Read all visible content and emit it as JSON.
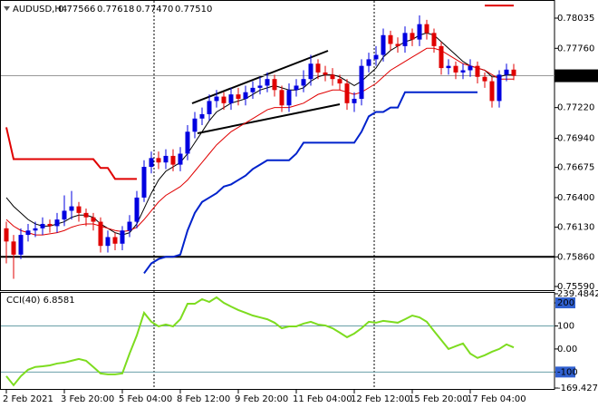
{
  "header": {
    "symbol": "AUDUSD,H4",
    "ohlc": [
      "0.77566",
      "0.77618",
      "0.77470",
      "0.77510"
    ]
  },
  "chart_data": [
    {
      "type": "candlestick",
      "categories": [
        "2 Feb 2021",
        null,
        null,
        null,
        null,
        null,
        null,
        null,
        "3 Feb 20:00",
        null,
        null,
        null,
        null,
        null,
        null,
        null,
        "5 Feb 04:00",
        null,
        null,
        null,
        null,
        null,
        null,
        null,
        "8 Feb 12:00",
        null,
        null,
        null,
        null,
        null,
        null,
        null,
        "9 Feb 20:00",
        null,
        null,
        null,
        null,
        null,
        null,
        null,
        "11 Feb 04:00",
        null,
        null,
        null,
        null,
        null,
        null,
        null,
        "12 Feb 12:00",
        null,
        null,
        null,
        null,
        null,
        null,
        null,
        "15 Feb 20:00",
        null,
        null,
        null,
        null,
        null,
        null,
        null,
        "17 Feb 04:00",
        null,
        null,
        null,
        null,
        null,
        null
      ],
      "open": [
        0.7612,
        0.76,
        0.7588,
        0.7606,
        0.761,
        0.7612,
        0.7616,
        0.7614,
        0.762,
        0.7628,
        0.7632,
        0.7626,
        0.7622,
        0.7618,
        0.7596,
        0.7604,
        0.7598,
        0.761,
        0.7618,
        0.764,
        0.7668,
        0.7676,
        0.7672,
        0.7678,
        0.767,
        0.768,
        0.77,
        0.7712,
        0.7716,
        0.7728,
        0.7732,
        0.7726,
        0.7734,
        0.773,
        0.7736,
        0.774,
        0.7742,
        0.7748,
        0.7738,
        0.7724,
        0.7738,
        0.7742,
        0.7748,
        0.7762,
        0.7754,
        0.7752,
        0.7748,
        0.7744,
        0.7726,
        0.773,
        0.776,
        0.7766,
        0.777,
        0.7788,
        0.778,
        0.7778,
        0.779,
        0.7784,
        0.7798,
        0.779,
        0.7778,
        0.7758,
        0.776,
        0.7754,
        0.7756,
        0.776,
        0.775,
        0.7746,
        0.7728,
        0.7752,
        0.77566
      ],
      "high": [
        0.7618,
        0.7606,
        0.7612,
        0.7616,
        0.7618,
        0.7622,
        0.762,
        0.7626,
        0.7642,
        0.7646,
        0.7636,
        0.763,
        0.7626,
        0.7622,
        0.761,
        0.7608,
        0.7614,
        0.7624,
        0.7646,
        0.7674,
        0.7682,
        0.7682,
        0.7684,
        0.7684,
        0.7686,
        0.7706,
        0.7718,
        0.7722,
        0.7734,
        0.7738,
        0.7736,
        0.774,
        0.774,
        0.7742,
        0.7746,
        0.775,
        0.7754,
        0.7752,
        0.7742,
        0.7744,
        0.7748,
        0.7756,
        0.777,
        0.7766,
        0.776,
        0.7758,
        0.7752,
        0.7748,
        0.7736,
        0.7766,
        0.7772,
        0.7778,
        0.7794,
        0.7792,
        0.7786,
        0.7796,
        0.7794,
        0.7806,
        0.7802,
        0.7794,
        0.7782,
        0.7766,
        0.7764,
        0.7762,
        0.7766,
        0.7764,
        0.7754,
        0.775,
        0.7756,
        0.7762,
        0.77618
      ],
      "low": [
        0.758,
        0.7566,
        0.7584,
        0.76,
        0.7604,
        0.7606,
        0.7608,
        0.7608,
        0.7614,
        0.762,
        0.7618,
        0.7614,
        0.761,
        0.759,
        0.759,
        0.7592,
        0.7592,
        0.7604,
        0.7612,
        0.7636,
        0.7662,
        0.7666,
        0.7666,
        0.7664,
        0.7664,
        0.7674,
        0.7694,
        0.7706,
        0.771,
        0.7722,
        0.772,
        0.772,
        0.7724,
        0.7724,
        0.773,
        0.7734,
        0.7736,
        0.7732,
        0.7718,
        0.7718,
        0.7732,
        0.7736,
        0.7742,
        0.7748,
        0.7746,
        0.7742,
        0.7738,
        0.772,
        0.7718,
        0.7724,
        0.7754,
        0.776,
        0.7764,
        0.7774,
        0.7772,
        0.7772,
        0.7778,
        0.7778,
        0.7784,
        0.7772,
        0.7752,
        0.7752,
        0.7748,
        0.7748,
        0.775,
        0.7744,
        0.774,
        0.7722,
        0.7722,
        0.7746,
        0.7747
      ],
      "close": [
        0.76,
        0.7588,
        0.7606,
        0.761,
        0.7612,
        0.7616,
        0.7614,
        0.762,
        0.7628,
        0.7632,
        0.7626,
        0.7622,
        0.7618,
        0.7596,
        0.7604,
        0.7598,
        0.761,
        0.7618,
        0.764,
        0.7668,
        0.7676,
        0.7672,
        0.7678,
        0.767,
        0.768,
        0.77,
        0.7712,
        0.7716,
        0.7728,
        0.7732,
        0.7726,
        0.7734,
        0.773,
        0.7736,
        0.774,
        0.7742,
        0.7748,
        0.7738,
        0.7724,
        0.7738,
        0.7742,
        0.7748,
        0.7762,
        0.7754,
        0.7752,
        0.7748,
        0.7744,
        0.7726,
        0.773,
        0.776,
        0.7766,
        0.777,
        0.7788,
        0.778,
        0.7778,
        0.779,
        0.7784,
        0.7798,
        0.779,
        0.7778,
        0.7758,
        0.776,
        0.7754,
        0.7756,
        0.776,
        0.775,
        0.7746,
        0.7728,
        0.7752,
        0.77566,
        0.7751
      ],
      "up_color": "#0000e0",
      "down_color": "#e00000",
      "ylim": [
        0.75565,
        0.78192
      ],
      "yticks": [
        0.78035,
        {
          "value": 0.7776,
          "label": "0.77760"
        },
        {
          "value": 0.7722,
          "label": "0.77220"
        },
        {
          "value": 0.7694,
          "label": "0.76940"
        },
        0.76675,
        {
          "value": 0.764,
          "label": "0.76400"
        },
        {
          "value": 0.7613,
          "label": "0.76130"
        },
        {
          "value": 0.7586,
          "label": "0.75860"
        },
        {
          "value": 0.7559,
          "label": "0.75590"
        }
      ],
      "current_price": {
        "value": 0.7751,
        "label": "0.77510"
      },
      "levels": [
        0.7586
      ],
      "lines": [
        {
          "color": "#000000",
          "width": 1,
          "values": [
            0.764,
            0.7632,
            0.7626,
            0.762,
            0.7616,
            0.7614,
            0.7614,
            0.7616,
            0.7618,
            0.7622,
            0.7624,
            0.7624,
            0.7622,
            0.7616,
            0.7612,
            0.7608,
            0.7606,
            0.7608,
            0.7616,
            0.763,
            0.7644,
            0.7656,
            0.7664,
            0.7668,
            0.7672,
            0.768,
            0.769,
            0.77,
            0.771,
            0.7718,
            0.7722,
            0.7726,
            0.7728,
            0.773,
            0.7734,
            0.7738,
            0.774,
            0.7742,
            0.774,
            0.7738,
            0.7738,
            0.774,
            0.7746,
            0.775,
            0.7752,
            0.7752,
            0.775,
            0.7746,
            0.7742,
            0.7746,
            0.7752,
            0.7758,
            0.7768,
            0.7774,
            0.7778,
            0.7782,
            0.7784,
            0.7788,
            0.779,
            0.7788,
            0.7782,
            0.7776,
            0.777,
            0.7764,
            0.776,
            0.7758,
            0.7756,
            0.775,
            0.775,
            0.7752,
            0.7752
          ]
        },
        {
          "color": "#e00000",
          "width": 1,
          "values": [
            0.762,
            0.7614,
            0.761,
            0.7608,
            0.7606,
            0.7606,
            0.7607,
            0.7608,
            0.761,
            0.7613,
            0.7615,
            0.7616,
            0.7616,
            0.7614,
            0.7612,
            0.761,
            0.7609,
            0.761,
            0.7613,
            0.762,
            0.7628,
            0.7636,
            0.7642,
            0.7646,
            0.765,
            0.7656,
            0.7664,
            0.7672,
            0.768,
            0.7688,
            0.7694,
            0.77,
            0.7704,
            0.7708,
            0.7712,
            0.7716,
            0.772,
            0.7722,
            0.7722,
            0.7722,
            0.7724,
            0.7726,
            0.773,
            0.7734,
            0.7736,
            0.7738,
            0.7738,
            0.7736,
            0.7734,
            0.7736,
            0.774,
            0.7744,
            0.775,
            0.7756,
            0.776,
            0.7764,
            0.7768,
            0.7772,
            0.7776,
            0.7776,
            0.7774,
            0.777,
            0.7766,
            0.7762,
            0.776,
            0.7758,
            0.7756,
            0.7752,
            0.7748,
            0.7748,
            0.7748
          ]
        },
        {
          "color": "#0022cc",
          "width": 2,
          "values": [
            null,
            null,
            null,
            null,
            null,
            null,
            null,
            null,
            null,
            null,
            null,
            null,
            null,
            null,
            null,
            null,
            null,
            null,
            null,
            0.7571,
            0.758,
            0.7584,
            0.7586,
            0.7586,
            0.7588,
            0.761,
            0.7626,
            0.7636,
            0.764,
            0.7644,
            0.765,
            0.7652,
            0.7656,
            0.766,
            0.7666,
            0.767,
            0.7674,
            0.7674,
            0.7674,
            0.7674,
            0.768,
            0.769,
            0.769,
            0.769,
            0.769,
            0.769,
            0.769,
            0.769,
            0.769,
            0.77,
            0.7714,
            0.7718,
            0.7718,
            0.7722,
            0.7722,
            0.7736,
            0.7736,
            0.7736,
            0.7736,
            0.7736,
            0.7736,
            0.7736,
            0.7736,
            0.7736,
            0.7736,
            0.7736,
            null,
            null,
            null,
            null,
            null
          ]
        },
        {
          "color": "#e00000",
          "width": 2,
          "values": [
            0.7704,
            0.7675,
            0.7675,
            0.7675,
            0.7675,
            0.7675,
            0.7675,
            0.7675,
            0.7675,
            0.7675,
            0.7675,
            0.7675,
            0.7675,
            0.7667,
            0.7667,
            0.7657,
            0.7657,
            0.7657,
            0.7657,
            null,
            null,
            null,
            null,
            null,
            null,
            null,
            null,
            null,
            null,
            null,
            null,
            null,
            null,
            null,
            null,
            null,
            null,
            null,
            null,
            null,
            null,
            null,
            null,
            null,
            null,
            null,
            null,
            null,
            null,
            null,
            null,
            null,
            null,
            null,
            null,
            null,
            null,
            null,
            null,
            null,
            null,
            null,
            null,
            null,
            null,
            null,
            0.7815,
            0.7815,
            0.7815,
            0.7815,
            0.7815
          ]
        }
      ]
    },
    {
      "type": "line",
      "title": "CCI(40) 6.8581",
      "color": "#7ddc1f",
      "values": [
        -118,
        -157,
        -118,
        -90,
        -78,
        -75,
        -71,
        -63,
        -59,
        -51,
        -43,
        -51,
        -78,
        -106,
        -110,
        -110,
        -106,
        -20,
        59,
        157,
        118,
        98,
        106,
        98,
        129,
        196,
        196,
        216,
        204,
        224,
        200,
        184,
        169,
        157,
        145,
        137,
        129,
        114,
        90,
        98,
        98,
        110,
        118,
        106,
        102,
        90,
        71,
        51,
        67,
        90,
        118,
        114,
        122,
        118,
        114,
        129,
        145,
        137,
        118,
        78,
        39,
        0,
        12,
        24,
        -20,
        -39,
        -27,
        -12,
        0,
        20,
        6.8581
      ],
      "ylim": [
        -169.4271,
        239.4842
      ],
      "yticks": [
        239.4842,
        200,
        100,
        {
          "value": 0,
          "label": "0.00"
        },
        -100,
        -169.4271
      ],
      "levels": [
        100,
        -100
      ],
      "highlighted_ticks": [
        200,
        -100
      ]
    }
  ]
}
